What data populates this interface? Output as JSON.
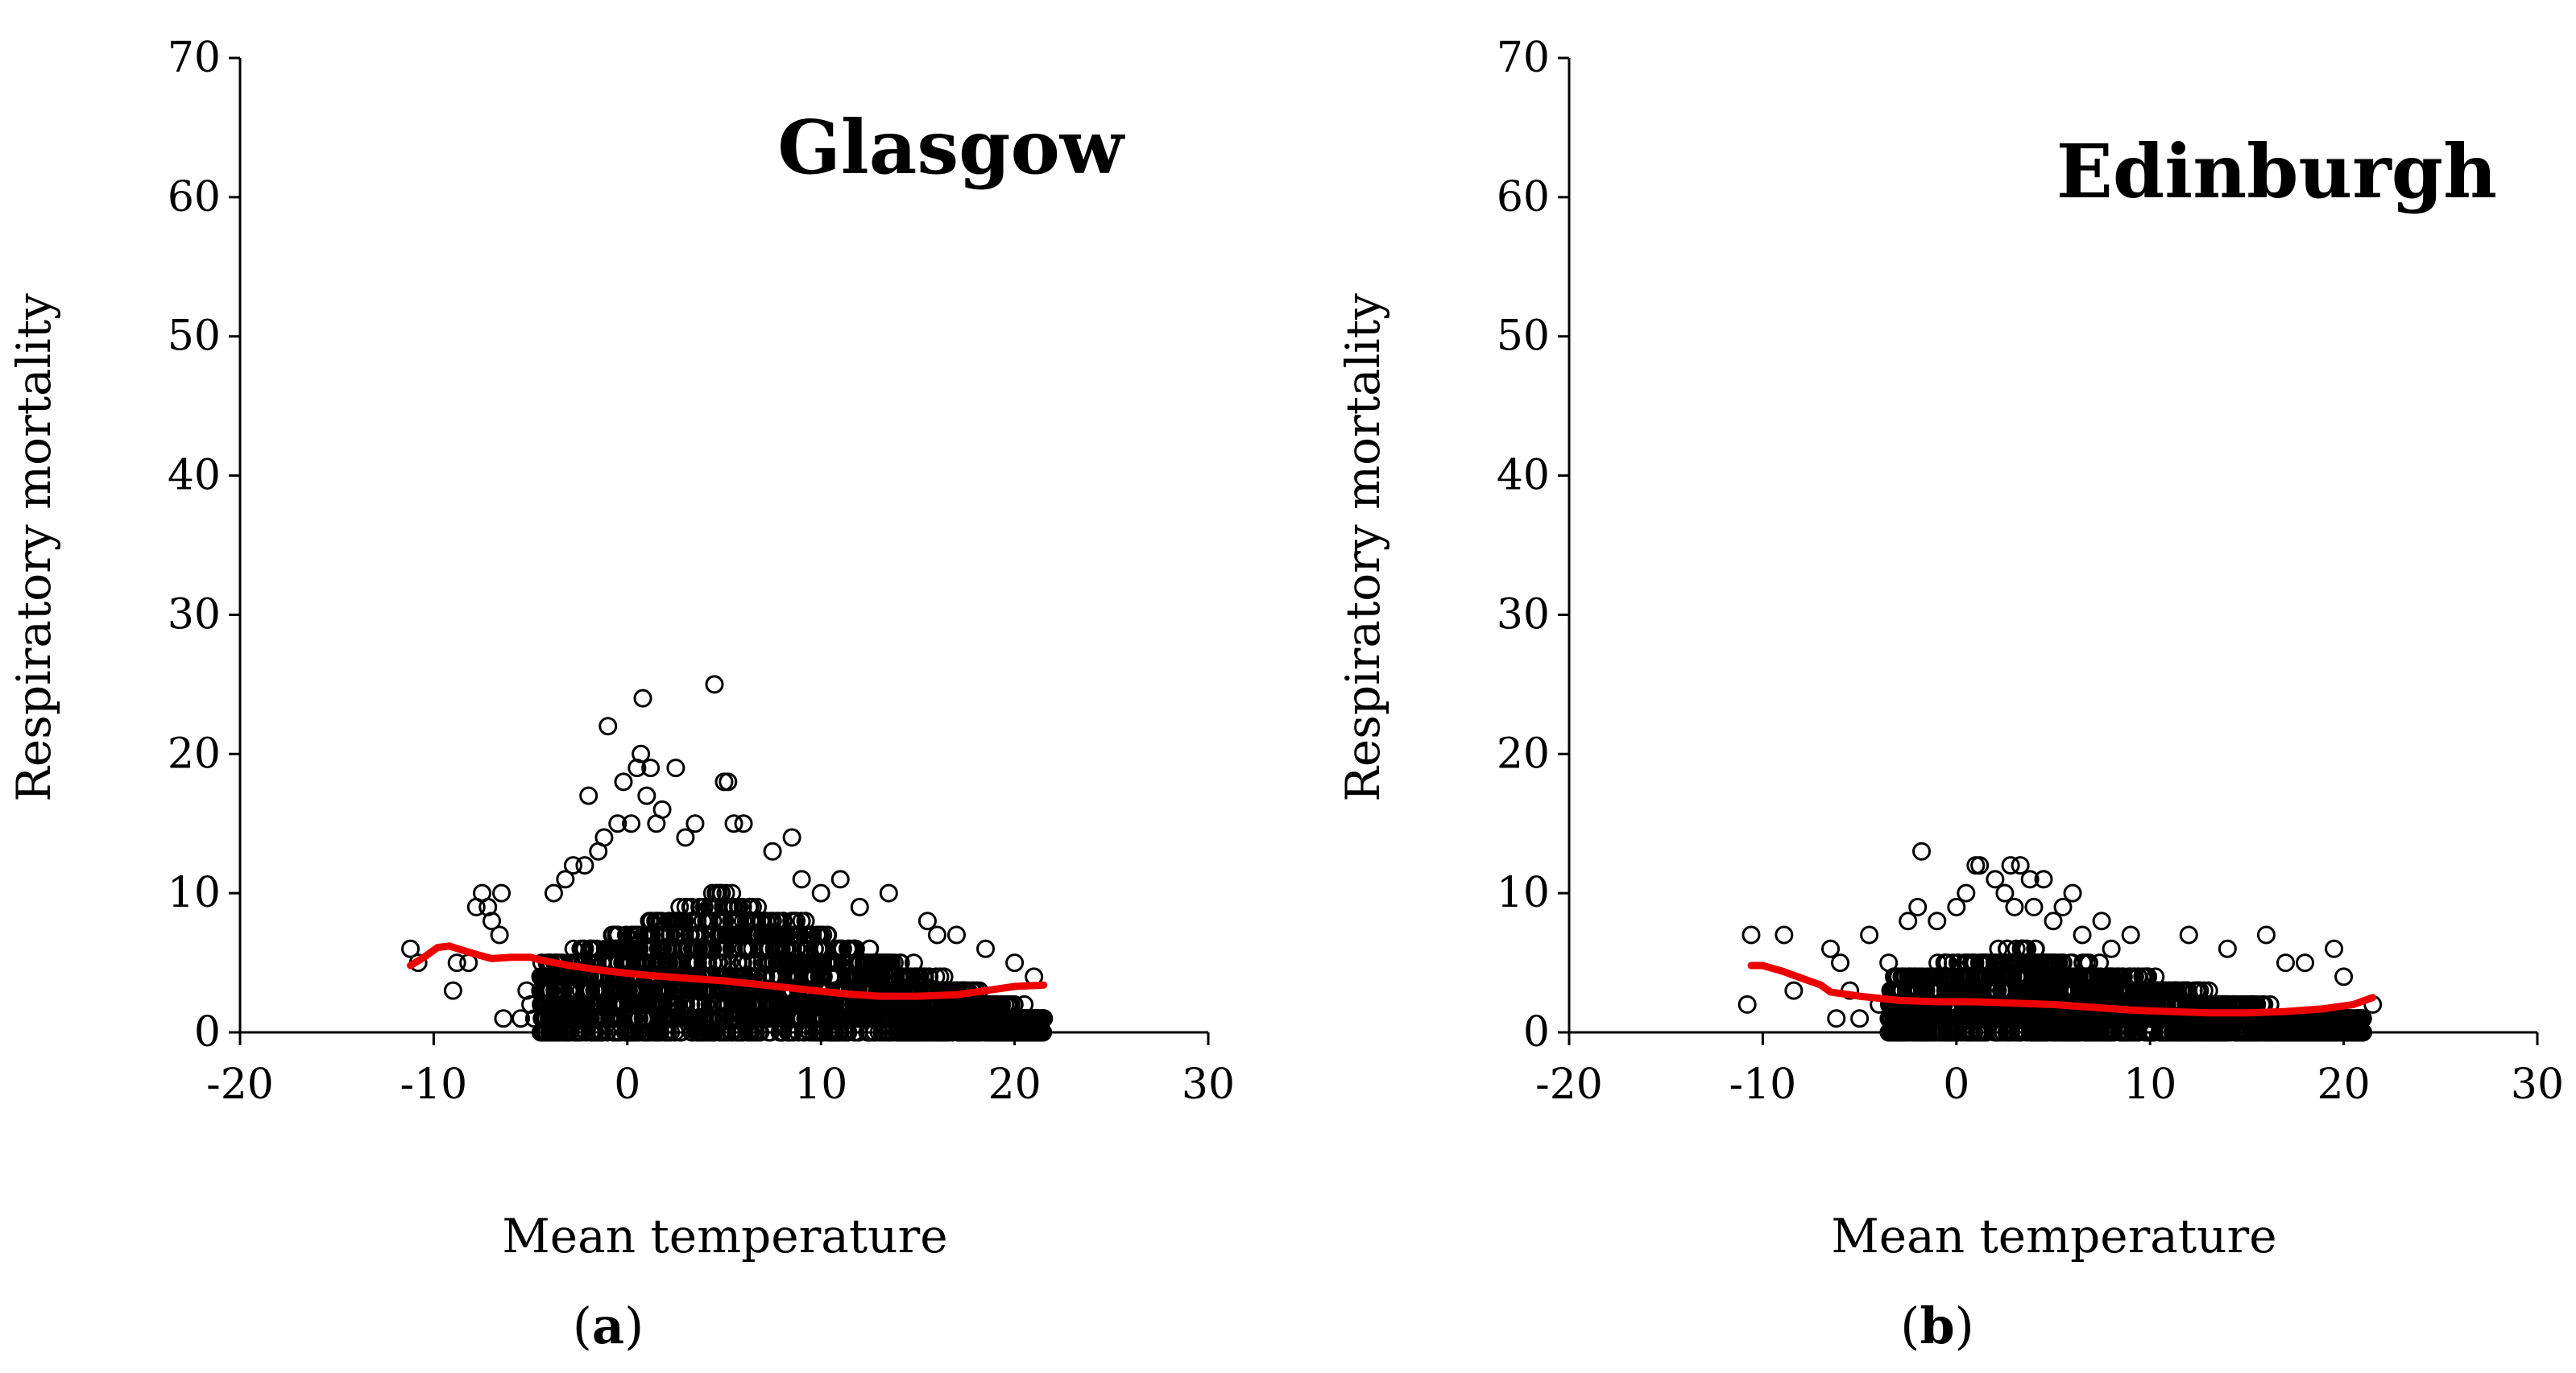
{
  "chart_data": [
    {
      "type": "scatter",
      "panel": "(a)",
      "panel_letter": "a",
      "title": "Glasgow",
      "xlabel": "Mean temperature",
      "ylabel": "Respiratory mortality",
      "xlim": [
        -20,
        30
      ],
      "ylim": [
        0,
        70
      ],
      "xticks": [
        -20,
        -10,
        0,
        10,
        20,
        30
      ],
      "yticks": [
        0,
        10,
        20,
        30,
        40,
        50,
        60,
        70
      ],
      "colors": {
        "points": "#000000",
        "smooth": "#ee0000"
      },
      "scatter_cloud": {
        "x_range": [
          -4.5,
          21.5
        ],
        "x_peak": 5,
        "y_max_at_peak": 10,
        "y_min": 0
      },
      "outliers": [
        {
          "x": -11.2,
          "y": 6
        },
        {
          "x": -10.8,
          "y": 5
        },
        {
          "x": -8.8,
          "y": 5
        },
        {
          "x": -9,
          "y": 3
        },
        {
          "x": -7.8,
          "y": 9
        },
        {
          "x": -7.5,
          "y": 10
        },
        {
          "x": -7.2,
          "y": 9
        },
        {
          "x": -7,
          "y": 8
        },
        {
          "x": -6.5,
          "y": 10
        },
        {
          "x": -6.6,
          "y": 7
        },
        {
          "x": -6.4,
          "y": 1
        },
        {
          "x": -8.2,
          "y": 5
        },
        {
          "x": -5.5,
          "y": 1
        },
        {
          "x": -5,
          "y": 2
        },
        {
          "x": -4.8,
          "y": 1
        },
        {
          "x": -5.2,
          "y": 3
        },
        {
          "x": -4.2,
          "y": 1
        },
        {
          "x": -3.8,
          "y": 10
        },
        {
          "x": -3.2,
          "y": 11
        },
        {
          "x": -2.8,
          "y": 12
        },
        {
          "x": -2.2,
          "y": 12
        },
        {
          "x": -2,
          "y": 17
        },
        {
          "x": -1.5,
          "y": 13
        },
        {
          "x": -1.2,
          "y": 14
        },
        {
          "x": -1,
          "y": 22
        },
        {
          "x": -0.5,
          "y": 15
        },
        {
          "x": -0.2,
          "y": 18
        },
        {
          "x": 0.2,
          "y": 15
        },
        {
          "x": 0.5,
          "y": 19
        },
        {
          "x": 0.7,
          "y": 20
        },
        {
          "x": 0.8,
          "y": 24
        },
        {
          "x": 1,
          "y": 17
        },
        {
          "x": 1.2,
          "y": 19
        },
        {
          "x": 1.5,
          "y": 15
        },
        {
          "x": 1.8,
          "y": 16
        },
        {
          "x": 2.5,
          "y": 19
        },
        {
          "x": 3,
          "y": 14
        },
        {
          "x": 3.5,
          "y": 15
        },
        {
          "x": 4.5,
          "y": 25
        },
        {
          "x": 5,
          "y": 18
        },
        {
          "x": 5.2,
          "y": 18
        },
        {
          "x": 5.5,
          "y": 15
        },
        {
          "x": 6,
          "y": 15
        },
        {
          "x": 7.5,
          "y": 13
        },
        {
          "x": 8.5,
          "y": 14
        },
        {
          "x": 11,
          "y": 11
        },
        {
          "x": 13.5,
          "y": 10
        },
        {
          "x": 15.5,
          "y": 8
        },
        {
          "x": 16,
          "y": 7
        },
        {
          "x": 17,
          "y": 7
        },
        {
          "x": 18.5,
          "y": 6
        },
        {
          "x": 20,
          "y": 5
        },
        {
          "x": 21,
          "y": 4
        },
        {
          "x": 21.5,
          "y": 1
        },
        {
          "x": 20.5,
          "y": 2
        },
        {
          "x": 10,
          "y": 10
        },
        {
          "x": 12,
          "y": 9
        },
        {
          "x": 9,
          "y": 11
        }
      ],
      "smooth_x": [
        -11.2,
        -10.5,
        -9.8,
        -9.2,
        -8.5,
        -7.8,
        -7,
        -6,
        -5,
        -4.5,
        -3,
        -1,
        1,
        3,
        5,
        7,
        9,
        11,
        13,
        15,
        17,
        18,
        19,
        20,
        21.5
      ],
      "smooth_y": [
        4.8,
        5.4,
        6.1,
        6.2,
        5.9,
        5.6,
        5.3,
        5.4,
        5.4,
        5.2,
        4.8,
        4.4,
        4.1,
        3.9,
        3.7,
        3.4,
        3.1,
        2.8,
        2.6,
        2.6,
        2.7,
        2.9,
        3.1,
        3.3,
        3.4
      ]
    },
    {
      "type": "scatter",
      "panel": "(b)",
      "panel_letter": "b",
      "title": "Edinburgh",
      "xlabel": "Mean temperature",
      "ylabel": "Respiratory mortality",
      "xlim": [
        -20,
        30
      ],
      "ylim": [
        0,
        70
      ],
      "xticks": [
        -20,
        -10,
        0,
        10,
        20,
        30
      ],
      "yticks": [
        0,
        10,
        20,
        30,
        40,
        50,
        60,
        70
      ],
      "colors": {
        "points": "#000000",
        "smooth": "#ee0000"
      },
      "scatter_cloud": {
        "x_range": [
          -3.5,
          21
        ],
        "x_peak": 3,
        "y_max_at_peak": 6,
        "y_min": 0
      },
      "outliers": [
        {
          "x": -10.6,
          "y": 7
        },
        {
          "x": -10.8,
          "y": 2
        },
        {
          "x": -6.5,
          "y": 6
        },
        {
          "x": -6,
          "y": 5
        },
        {
          "x": -6.2,
          "y": 1
        },
        {
          "x": -5.5,
          "y": 3
        },
        {
          "x": -5,
          "y": 1
        },
        {
          "x": -4.5,
          "y": 7
        },
        {
          "x": -8.4,
          "y": 3
        },
        {
          "x": -8.9,
          "y": 7
        },
        {
          "x": -4,
          "y": 2
        },
        {
          "x": -3.5,
          "y": 5
        },
        {
          "x": -2.5,
          "y": 8
        },
        {
          "x": -2,
          "y": 9
        },
        {
          "x": -1.8,
          "y": 13
        },
        {
          "x": -1,
          "y": 8
        },
        {
          "x": 0,
          "y": 9
        },
        {
          "x": 0.5,
          "y": 10
        },
        {
          "x": 1,
          "y": 12
        },
        {
          "x": 1.2,
          "y": 12
        },
        {
          "x": 2,
          "y": 11
        },
        {
          "x": 2.5,
          "y": 10
        },
        {
          "x": 2.8,
          "y": 12
        },
        {
          "x": 3.3,
          "y": 12
        },
        {
          "x": 3,
          "y": 9
        },
        {
          "x": 3.8,
          "y": 11
        },
        {
          "x": 4.5,
          "y": 11
        },
        {
          "x": 4,
          "y": 9
        },
        {
          "x": 5,
          "y": 8
        },
        {
          "x": 5.5,
          "y": 9
        },
        {
          "x": 6,
          "y": 10
        },
        {
          "x": 6.5,
          "y": 7
        },
        {
          "x": 7.5,
          "y": 8
        },
        {
          "x": 8,
          "y": 6
        },
        {
          "x": 9,
          "y": 7
        },
        {
          "x": 12,
          "y": 7
        },
        {
          "x": 14,
          "y": 6
        },
        {
          "x": 16,
          "y": 7
        },
        {
          "x": 17,
          "y": 5
        },
        {
          "x": 18,
          "y": 5
        },
        {
          "x": 19.5,
          "y": 6
        },
        {
          "x": 20,
          "y": 4
        },
        {
          "x": 20.2,
          "y": 1
        },
        {
          "x": 21.5,
          "y": 2
        }
      ],
      "smooth_x": [
        -10.6,
        -10,
        -9,
        -8,
        -7,
        -6.5,
        -5,
        -3,
        -1,
        1,
        3,
        5,
        7,
        9,
        11,
        13,
        15,
        17,
        19,
        20.5,
        21.5
      ],
      "smooth_y": [
        4.8,
        4.8,
        4.4,
        3.9,
        3.4,
        2.9,
        2.6,
        2.3,
        2.2,
        2.2,
        2.1,
        2.0,
        1.8,
        1.6,
        1.5,
        1.4,
        1.4,
        1.5,
        1.7,
        2.0,
        2.5
      ]
    }
  ]
}
